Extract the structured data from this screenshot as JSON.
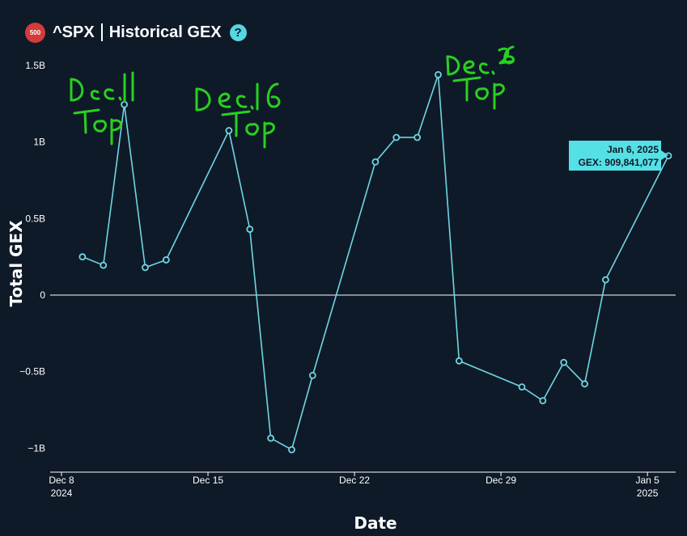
{
  "header": {
    "badge": "500",
    "symbol": "^SPX",
    "title": "Historical GEX",
    "help_icon": "question-circle-icon"
  },
  "colors": {
    "background": "#0f1a28",
    "line": "#6fd6e4",
    "marker": "#6fd6e4",
    "zero_line": "#ffffff",
    "annotation": "#28d11f",
    "badge": "#d43b3b",
    "tooltip_bg": "#55e0e6"
  },
  "chart_data": {
    "type": "line",
    "xlabel": "Date",
    "ylabel": "Total GEX",
    "ylim": [
      -1150000000,
      1550000000
    ],
    "xlim": [
      "2024-12-08",
      "2025-01-06"
    ],
    "grid": false,
    "yticks": [
      {
        "value": 1500000000,
        "label": "1.5B"
      },
      {
        "value": 1000000000,
        "label": "1B"
      },
      {
        "value": 500000000,
        "label": "0.5B"
      },
      {
        "value": 0,
        "label": "0"
      },
      {
        "value": -500000000,
        "label": "−0.5B"
      },
      {
        "value": -1000000000,
        "label": "−1B"
      }
    ],
    "xticks": [
      {
        "date": "2024-12-08",
        "line1": "Dec 8",
        "line2": "2024"
      },
      {
        "date": "2024-12-15",
        "line1": "Dec 15",
        "line2": ""
      },
      {
        "date": "2024-12-22",
        "line1": "Dec 22",
        "line2": ""
      },
      {
        "date": "2024-12-29",
        "line1": "Dec 29",
        "line2": ""
      },
      {
        "date": "2025-01-05",
        "line1": "Jan 5",
        "line2": "2025"
      }
    ],
    "series": [
      {
        "points": [
          {
            "x": "2024-12-09",
            "y": 250000000
          },
          {
            "x": "2024-12-10",
            "y": 195000000
          },
          {
            "x": "2024-12-11",
            "y": 1245000000
          },
          {
            "x": "2024-12-12",
            "y": 180000000
          },
          {
            "x": "2024-12-13",
            "y": 230000000
          },
          {
            "x": "2024-12-16",
            "y": 1075000000
          },
          {
            "x": "2024-12-17",
            "y": 430000000
          },
          {
            "x": "2024-12-18",
            "y": -935000000
          },
          {
            "x": "2024-12-19",
            "y": -1010000000
          },
          {
            "x": "2024-12-20",
            "y": -525000000
          },
          {
            "x": "2024-12-23",
            "y": 870000000
          },
          {
            "x": "2024-12-24",
            "y": 1030000000
          },
          {
            "x": "2024-12-25",
            "y": 1030000000
          },
          {
            "x": "2024-12-26",
            "y": 1440000000
          },
          {
            "x": "2024-12-27",
            "y": -430000000
          },
          {
            "x": "2024-12-30",
            "y": -600000000
          },
          {
            "x": "2024-12-31",
            "y": -690000000
          },
          {
            "x": "2025-01-01",
            "y": -440000000
          },
          {
            "x": "2025-01-02",
            "y": -580000000
          },
          {
            "x": "2025-01-03",
            "y": 100000000
          },
          {
            "x": "2025-01-06",
            "y": 909841077
          }
        ]
      }
    ],
    "tooltip": {
      "date": "Jan 6, 2025",
      "value": "GEX: 909,841,077"
    },
    "annotations": [
      {
        "line1": "Dec. 11",
        "line2": "Top"
      },
      {
        "line1": "Dec. 16",
        "line2": "Top"
      },
      {
        "line1": "Dec. 26",
        "line2": "Top"
      }
    ]
  }
}
